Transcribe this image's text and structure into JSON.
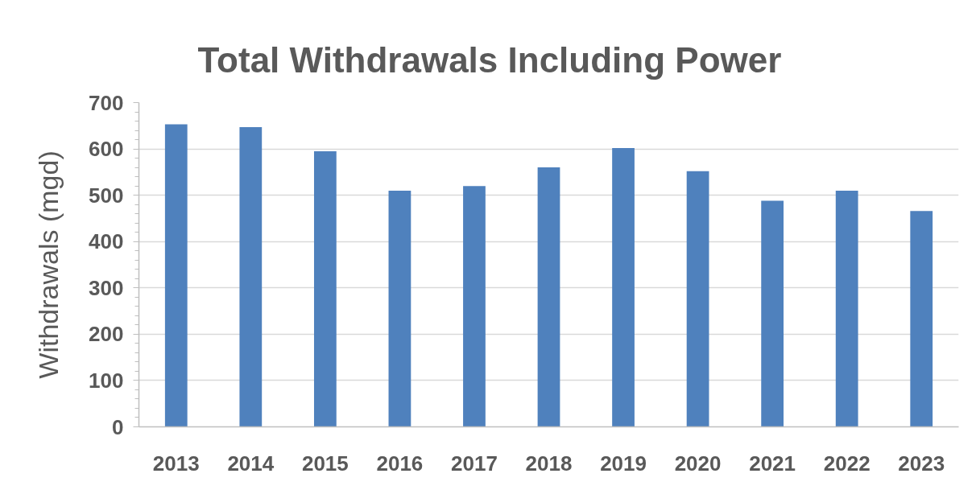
{
  "chart_data": {
    "type": "bar",
    "title": "Total Withdrawals Including Power",
    "ylabel": "Withdrawals (mgd)",
    "categories": [
      "2013",
      "2014",
      "2015",
      "2016",
      "2017",
      "2018",
      "2019",
      "2020",
      "2021",
      "2022",
      "2023"
    ],
    "values": [
      653,
      647,
      595,
      510,
      520,
      560,
      602,
      552,
      488,
      510,
      466
    ],
    "color": "#4f81bd",
    "ylim": [
      0,
      700
    ],
    "yticks": [
      0,
      {
        "value": 20,
        "label": null
      },
      {
        "value": 40,
        "label": null
      },
      {
        "value": 60,
        "label": null
      },
      {
        "value": 80,
        "label": null
      },
      100,
      {
        "value": 120,
        "label": null
      },
      {
        "value": 140,
        "label": null
      },
      {
        "value": 160,
        "label": null
      },
      {
        "value": 180,
        "label": null
      },
      200,
      {
        "value": 220,
        "label": null
      },
      {
        "value": 240,
        "label": null
      },
      {
        "value": 260,
        "label": null
      },
      {
        "value": 280,
        "label": null
      },
      300,
      {
        "value": 320,
        "label": null
      },
      {
        "value": 340,
        "label": null
      },
      {
        "value": 360,
        "label": null
      },
      {
        "value": 380,
        "label": null
      },
      400,
      {
        "value": 420,
        "label": null
      },
      {
        "value": 440,
        "label": null
      },
      {
        "value": 460,
        "label": null
      },
      {
        "value": 480,
        "label": null
      },
      500,
      {
        "value": 520,
        "label": null
      },
      {
        "value": 540,
        "label": null
      },
      {
        "value": 560,
        "label": null
      },
      {
        "value": 580,
        "label": null
      },
      600,
      {
        "value": 620,
        "label": null
      },
      {
        "value": 640,
        "label": null
      },
      {
        "value": 660,
        "label": null
      },
      {
        "value": 680,
        "label": null
      },
      700
    ],
    "grid": "y"
  }
}
